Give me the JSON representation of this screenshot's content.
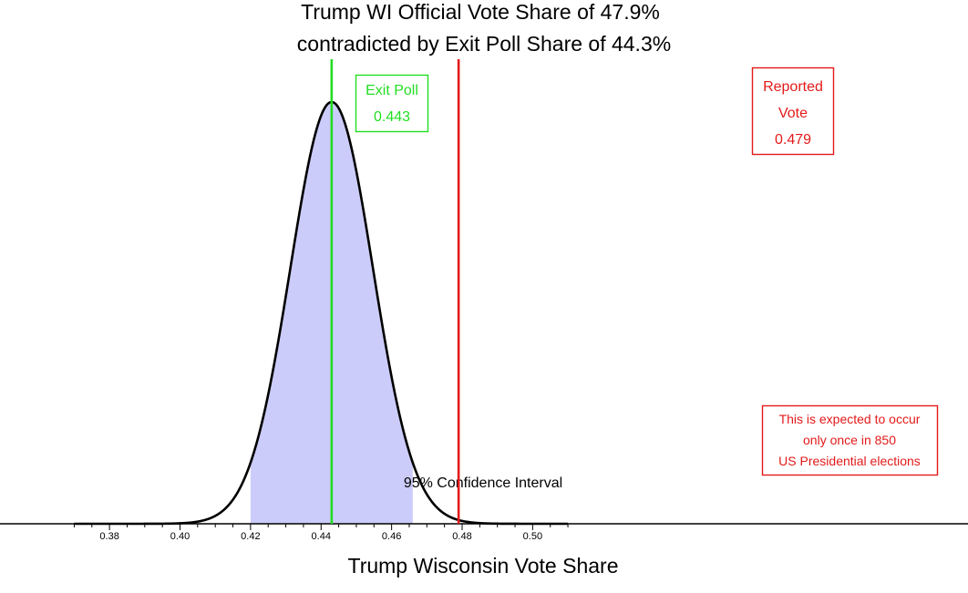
{
  "chart_data": {
    "type": "area",
    "title_lines": [
      "Trump WI Official Vote Share of 47.9%",
      "contradicted by Exit Poll Share of 44.3%"
    ],
    "xlabel": "Trump Wisconsin Vote Share",
    "ylabel": "",
    "xlim": [
      0.37,
      0.51
    ],
    "x_ticks": [
      "0.38",
      "0.40",
      "0.42",
      "0.44",
      "0.46",
      "0.48",
      "0.50"
    ],
    "grid": false,
    "distribution": {
      "mean": 0.443,
      "sd": 0.0117
    },
    "confidence_interval": {
      "lower": 0.42,
      "upper": 0.466,
      "label": "95% Confidence Interval"
    },
    "exit_poll": {
      "value": 0.443,
      "label_lines": [
        "Exit Poll",
        "0.443"
      ]
    },
    "reported_vote": {
      "value": 0.479,
      "label_lines": [
        "Reported",
        "Vote",
        "0.479"
      ]
    },
    "note_lines": [
      "This is expected to occur",
      "only once in 850",
      "US Presidential elections"
    ],
    "colors": {
      "curve": "#000000",
      "ci_fill": "#ccccfa",
      "exit_poll": "#22dd22",
      "reported": "#e31a1a"
    }
  }
}
